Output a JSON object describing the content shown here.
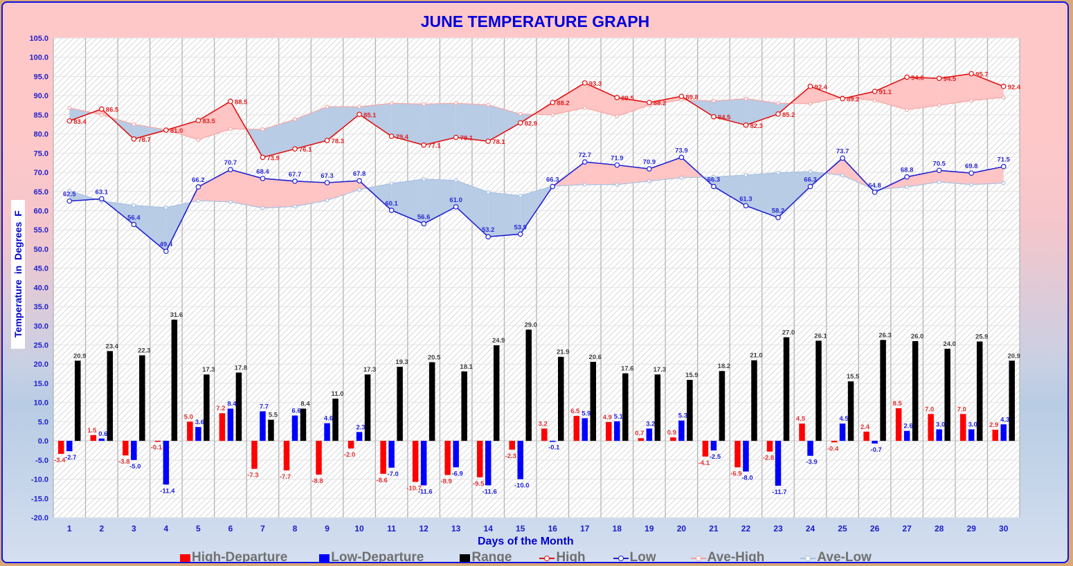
{
  "chart_data": {
    "type": "bar",
    "title": "JUNE TEMPERATURE GRAPH",
    "xlabel": "Days of the Month",
    "ylabel": "Temperature  in  Degrees  F",
    "ylim": [
      -20,
      105
    ],
    "ytick_step": 5,
    "grid": true,
    "legend_position": "bottom",
    "categories": [
      "1",
      "2",
      "3",
      "4",
      "5",
      "6",
      "7",
      "8",
      "9",
      "10",
      "11",
      "12",
      "13",
      "14",
      "15",
      "16",
      "17",
      "18",
      "19",
      "20",
      "21",
      "22",
      "23",
      "24",
      "25",
      "26",
      "27",
      "28",
      "29",
      "30"
    ],
    "series": [
      {
        "name": "High-Departure",
        "kind": "bar",
        "color": "#ff0000",
        "values": [
          -3.4,
          1.5,
          -3.8,
          -0.1,
          5.0,
          7.2,
          -7.3,
          -7.7,
          -8.8,
          -2.0,
          -8.6,
          -10.7,
          -8.9,
          -9.5,
          -2.3,
          3.2,
          6.5,
          4.9,
          0.7,
          0.9,
          -4.1,
          -6.9,
          -2.8,
          4.5,
          -0.4,
          2.4,
          8.5,
          7.0,
          7.0,
          2.9
        ]
      },
      {
        "name": "Low-Departure",
        "kind": "bar",
        "color": "#0000ff",
        "values": [
          -2.7,
          0.6,
          -5.0,
          -11.4,
          3.6,
          8.4,
          7.7,
          6.6,
          4.6,
          2.3,
          -7.0,
          -11.6,
          -6.9,
          -11.6,
          -10.0,
          -0.1,
          5.9,
          5.1,
          3.2,
          5.3,
          -2.5,
          -8.0,
          -11.7,
          -3.9,
          4.5,
          -0.7,
          2.6,
          3.0,
          3.0,
          4.3
        ]
      },
      {
        "name": "Range",
        "kind": "bar",
        "color": "#000000",
        "values": [
          20.9,
          23.4,
          22.3,
          31.6,
          17.3,
          17.8,
          5.5,
          8.4,
          11.0,
          17.3,
          19.3,
          20.5,
          18.1,
          24.9,
          29.0,
          21.9,
          20.6,
          17.6,
          17.3,
          15.9,
          18.2,
          21.0,
          27.0,
          26.1,
          15.5,
          26.3,
          26.0,
          24.0,
          25.9,
          20.9
        ]
      },
      {
        "name": "High",
        "kind": "line",
        "color": "#e01010",
        "values": [
          83.4,
          86.5,
          78.7,
          81.0,
          83.5,
          88.5,
          73.9,
          76.1,
          78.3,
          85.1,
          79.4,
          77.1,
          79.1,
          78.1,
          82.9,
          88.2,
          93.3,
          89.5,
          88.2,
          89.8,
          84.5,
          82.3,
          85.2,
          92.4,
          89.2,
          91.1,
          94.8,
          94.5,
          95.7,
          92.4
        ]
      },
      {
        "name": "Low",
        "kind": "line",
        "color": "#2020d0",
        "values": [
          62.5,
          63.1,
          56.4,
          49.4,
          66.2,
          70.7,
          68.4,
          67.7,
          67.3,
          67.8,
          60.1,
          56.6,
          61.0,
          53.2,
          53.9,
          66.3,
          72.7,
          71.9,
          70.9,
          73.9,
          66.3,
          61.3,
          58.2,
          66.3,
          73.7,
          64.8,
          68.8,
          70.5,
          69.8,
          71.5
        ]
      },
      {
        "name": "Ave-High",
        "kind": "line",
        "color": "#f4a0a0",
        "values": [
          86.8,
          85.0,
          82.5,
          81.1,
          78.5,
          81.3,
          81.2,
          83.8,
          87.1,
          87.1,
          88.0,
          87.8,
          88.0,
          87.6,
          85.2,
          85.0,
          86.8,
          84.6,
          87.5,
          88.9,
          88.6,
          89.2,
          88.0,
          87.9,
          89.6,
          88.7,
          86.3,
          87.5,
          88.7,
          89.5
        ]
      },
      {
        "name": "Ave-Low",
        "kind": "line",
        "color": "#a8c0e0",
        "values": [
          65.2,
          62.5,
          61.4,
          60.8,
          62.6,
          62.3,
          60.7,
          61.1,
          62.7,
          65.5,
          67.1,
          68.2,
          67.9,
          64.8,
          63.9,
          66.4,
          66.8,
          66.8,
          67.7,
          68.6,
          68.8,
          69.3,
          69.9,
          70.2,
          69.2,
          65.5,
          66.2,
          67.5,
          66.8,
          67.2
        ]
      }
    ],
    "fill_colors": {
      "above_average": "#ffc4c4",
      "below_average": "#b8cce6"
    }
  },
  "legend": {
    "items": [
      {
        "label": "High-Departure",
        "style": "box",
        "color": "#ff0000"
      },
      {
        "label": "Low-Departure",
        "style": "box",
        "color": "#0000ff"
      },
      {
        "label": "Range",
        "style": "box",
        "color": "#000000"
      },
      {
        "label": "High",
        "style": "line",
        "color": "#e01010"
      },
      {
        "label": "Low",
        "style": "line",
        "color": "#2020d0"
      },
      {
        "label": "Ave-High",
        "style": "line",
        "color": "#f4a0a0"
      },
      {
        "label": "Ave-Low",
        "style": "line",
        "color": "#a8c0e0"
      }
    ]
  }
}
